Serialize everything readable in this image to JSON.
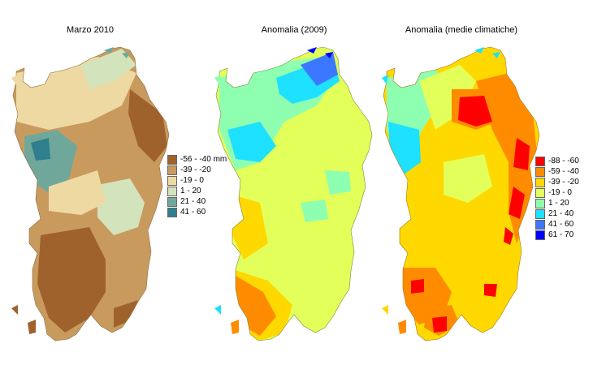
{
  "titles": {
    "march": "Marzo 2010",
    "anom2009": "Anomalia (2009)",
    "anomClim": "Anomalia (medie climatiche)"
  },
  "legends": {
    "march": [
      {
        "label": "-56 - -40 mm",
        "color": "#a0622d"
      },
      {
        "label": "-39 - -20",
        "color": "#c99a5e"
      },
      {
        "label": "-19 - 0",
        "color": "#efd9a2"
      },
      {
        "label": "1 - 20",
        "color": "#d3e3bc"
      },
      {
        "label": "21 - 40",
        "color": "#6fa89b"
      },
      {
        "label": "41 - 60",
        "color": "#2f7f8e"
      }
    ],
    "anomaly": [
      {
        "label": "-88 - -60",
        "color": "#ff0000"
      },
      {
        "label": "-59 - -40",
        "color": "#ff8c00"
      },
      {
        "label": "-39 - -20",
        "color": "#ffd800"
      },
      {
        "label": "-19 - 0",
        "color": "#e3ff5a"
      },
      {
        "label": "1 - 20",
        "color": "#8effb0"
      },
      {
        "label": "21 - 40",
        "color": "#1ee0ff"
      },
      {
        "label": "41 - 60",
        "color": "#3c78ff"
      },
      {
        "label": "61 - 70",
        "color": "#0000ff"
      }
    ]
  }
}
